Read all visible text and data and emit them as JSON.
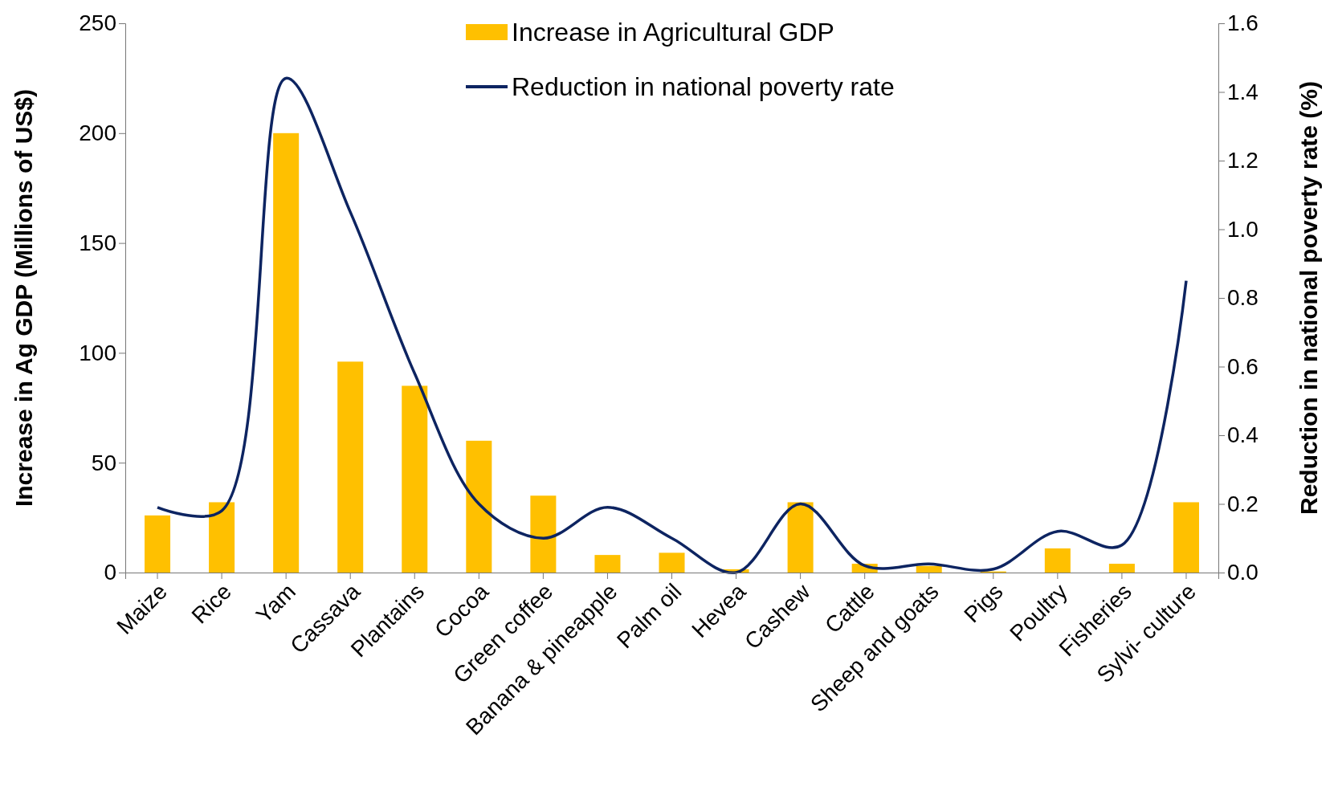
{
  "chart_data": {
    "type": "bar",
    "categories": [
      "Maize",
      "Rice",
      "Yam",
      "Cassava",
      "Plantains",
      "Cocoa",
      "Green coffee",
      "Banana & pineapple",
      "Palm oil",
      "Hevea",
      "Cashew",
      "Cattle",
      "Sheep and goats",
      "Pigs",
      "Poultry",
      "Fisheries",
      "Sylvi- culture"
    ],
    "series": [
      {
        "name": "Increase in Agricultural GDP",
        "color": "#ffc000",
        "values": [
          26,
          32,
          200,
          96,
          85,
          60,
          35,
          8,
          9,
          1.5,
          32,
          4,
          3,
          0.5,
          11,
          4,
          32
        ]
      },
      {
        "name": "Reduction in national poverty rate",
        "type": "line",
        "axis": "y2",
        "color": "#0d2461",
        "marker": "none",
        "line_style": "solid",
        "values": [
          0.19,
          0.18,
          1.44,
          1.05,
          0.58,
          0.2,
          0.1,
          0.19,
          0.1,
          0.0,
          0.2,
          0.02,
          0.025,
          0.01,
          0.12,
          0.08,
          0.85
        ]
      }
    ],
    "ylabel": "Increase in Ag GDP (Millions of US$)",
    "y2label": "Reduction in national poverty rate (%)",
    "ylim": [
      0,
      250
    ],
    "yticks": [
      0,
      50,
      100,
      150,
      200,
      250
    ],
    "y2lim": [
      0,
      1.6
    ],
    "y2ticks": [
      {
        "value": 0,
        "label": "0.0"
      },
      {
        "value": 0.2,
        "label": "0.2"
      },
      {
        "value": 0.4,
        "label": "0.4"
      },
      {
        "value": 0.6,
        "label": "0.6"
      },
      {
        "value": 0.8,
        "label": "0.8"
      },
      {
        "value": 1,
        "label": "1.0"
      },
      {
        "value": 1.2,
        "label": "1.2"
      },
      {
        "value": 1.4,
        "label": "1.4"
      },
      {
        "value": 1.6,
        "label": "1.6"
      }
    ],
    "grid": false,
    "legend": "top"
  }
}
